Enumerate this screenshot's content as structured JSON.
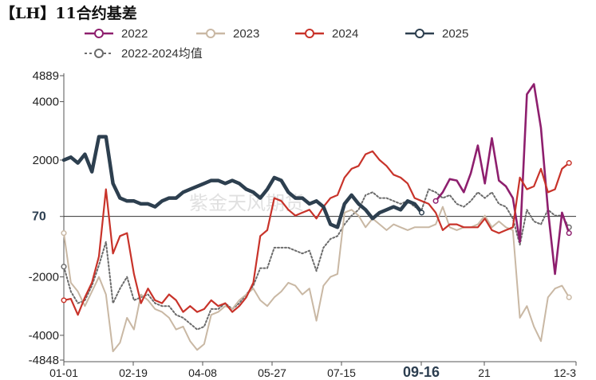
{
  "chart_data": {
    "type": "line",
    "title": "【LH】11合约基差",
    "x_ticks": [
      "01-01",
      "02-19",
      "04-08",
      "05-27",
      "07-15",
      "09-16",
      "21",
      "12-3"
    ],
    "highlight_x_tick": "09-16",
    "y_ticks": [
      4889,
      4000,
      2000,
      70,
      -2000,
      -4000,
      -4848
    ],
    "highlight_y_tick": 70,
    "ylim": [
      -4848,
      4889
    ],
    "xlim_days": [
      0,
      365
    ],
    "grid": false,
    "legend_position": "top",
    "watermark": "紫金天风期货",
    "colors": {
      "2022": "#8e1f6e",
      "2023": "#c9b8a4",
      "2024": "#c8332a",
      "2025": "#2d3f4f",
      "avg": "#6b6b6b"
    },
    "series": [
      {
        "name": "2022",
        "key": "2022",
        "x": [
          0,
          5,
          10,
          15,
          20,
          25,
          30,
          35,
          40,
          45,
          50,
          55,
          60,
          65,
          70,
          75,
          80,
          85,
          90,
          95,
          100,
          105,
          110,
          115,
          120,
          125,
          130,
          135,
          140,
          145,
          150,
          155,
          160,
          165,
          170,
          175,
          180,
          185,
          190,
          195,
          200,
          205,
          210,
          215,
          220,
          225,
          230,
          235,
          240,
          245,
          250,
          255,
          260,
          265,
          270,
          275,
          280,
          285,
          290,
          295,
          300,
          305,
          310,
          315,
          320,
          325,
          330,
          335,
          340,
          345,
          350,
          355,
          360
        ],
        "values": [
          null,
          null,
          null,
          null,
          null,
          null,
          null,
          null,
          null,
          null,
          null,
          null,
          null,
          null,
          null,
          null,
          null,
          null,
          null,
          null,
          null,
          null,
          null,
          null,
          null,
          null,
          null,
          null,
          null,
          null,
          null,
          null,
          null,
          null,
          null,
          null,
          null,
          null,
          null,
          null,
          null,
          null,
          null,
          null,
          null,
          null,
          null,
          null,
          null,
          null,
          null,
          null,
          null,
          600,
          900,
          1350,
          1300,
          900,
          1550,
          2500,
          1200,
          2750,
          1300,
          1100,
          700,
          -800,
          4250,
          4600,
          3100,
          300,
          -1900,
          200,
          -500
        ]
      },
      {
        "name": "2023",
        "key": "2023",
        "x": [
          0,
          5,
          10,
          15,
          20,
          25,
          30,
          35,
          40,
          45,
          50,
          55,
          60,
          65,
          70,
          75,
          80,
          85,
          90,
          95,
          100,
          105,
          110,
          115,
          120,
          125,
          130,
          135,
          140,
          145,
          150,
          155,
          160,
          165,
          170,
          175,
          180,
          185,
          190,
          195,
          200,
          205,
          210,
          215,
          220,
          225,
          230,
          235,
          240,
          245,
          250,
          255,
          260,
          265,
          270,
          275,
          280,
          285,
          290,
          295,
          300,
          305,
          310,
          315,
          320,
          325,
          330,
          335,
          340,
          345,
          350,
          355,
          360
        ],
        "values": [
          -500,
          -2200,
          -2500,
          -3000,
          -2500,
          -2000,
          -2600,
          -4550,
          -4250,
          -3400,
          -3800,
          -2600,
          -2800,
          -3100,
          -3200,
          -3400,
          -3800,
          -3700,
          -4200,
          -4500,
          -4300,
          -3300,
          -3200,
          -3000,
          -3100,
          -2800,
          -2600,
          -2400,
          -2800,
          -3000,
          -2700,
          -2500,
          -2200,
          -2300,
          -2600,
          -2400,
          -3500,
          -2300,
          -2000,
          -1900,
          200,
          300,
          100,
          -300,
          0,
          -200,
          -400,
          -200,
          -300,
          -400,
          -300,
          -300,
          -300,
          -200,
          400,
          -300,
          -400,
          -300,
          -300,
          -200,
          100,
          -300,
          -100,
          -300,
          -400,
          -3400,
          -3000,
          -3700,
          -4200,
          -2700,
          -2400,
          -2300,
          -2700
        ]
      },
      {
        "name": "2024",
        "key": "2024",
        "x": [
          0,
          5,
          10,
          15,
          20,
          25,
          30,
          35,
          40,
          45,
          50,
          55,
          60,
          65,
          70,
          75,
          80,
          85,
          90,
          95,
          100,
          105,
          110,
          115,
          120,
          125,
          130,
          135,
          140,
          145,
          150,
          155,
          160,
          165,
          170,
          175,
          180,
          185,
          190,
          195,
          200,
          205,
          210,
          215,
          220,
          225,
          230,
          235,
          240,
          245,
          250,
          255,
          260,
          265,
          270,
          275,
          280,
          285,
          290,
          295,
          300,
          305,
          310,
          315,
          320,
          325,
          330,
          335,
          340,
          345,
          350,
          355,
          360
        ],
        "values": [
          -2800,
          -2750,
          -3300,
          -2700,
          -2200,
          -1300,
          1000,
          -1200,
          -600,
          -500,
          -1900,
          -2900,
          -2400,
          -2800,
          -2900,
          -2600,
          -2800,
          -3200,
          -3000,
          -3200,
          -3100,
          -2800,
          -3000,
          -2900,
          -3200,
          -3000,
          -2700,
          -2200,
          -600,
          -400,
          700,
          600,
          300,
          100,
          200,
          300,
          0,
          400,
          700,
          800,
          1400,
          1700,
          1800,
          2200,
          2300,
          2000,
          1800,
          1500,
          1400,
          1200,
          700,
          600,
          500,
          200,
          -400,
          -200,
          -200,
          -300,
          -300,
          -300,
          0,
          -400,
          -500,
          -400,
          -300,
          1400,
          1000,
          1100,
          1700,
          900,
          1000,
          1700,
          1900
        ]
      },
      {
        "name": "2025",
        "key": "2025",
        "x": [
          0,
          5,
          10,
          15,
          20,
          25,
          30,
          35,
          40,
          45,
          50,
          55,
          60,
          65,
          70,
          75,
          80,
          85,
          90,
          95,
          100,
          105,
          110,
          115,
          120,
          125,
          130,
          135,
          140,
          145,
          150,
          155,
          160,
          165,
          170,
          175,
          180,
          185,
          190,
          195,
          200,
          205,
          210,
          215,
          220,
          225,
          230,
          235,
          240,
          245,
          250,
          255,
          260,
          265,
          270,
          275,
          280,
          285,
          290,
          295,
          300,
          305,
          310,
          315,
          320,
          325,
          330,
          335,
          340,
          345,
          350,
          355,
          360
        ],
        "values": [
          2000,
          2100,
          1900,
          2200,
          1600,
          2800,
          2800,
          1200,
          700,
          600,
          600,
          500,
          500,
          400,
          600,
          700,
          700,
          900,
          1000,
          1100,
          1200,
          1300,
          1300,
          1200,
          1300,
          1200,
          1000,
          900,
          700,
          1000,
          1400,
          1300,
          900,
          700,
          700,
          500,
          600,
          400,
          -200,
          -300,
          500,
          800,
          500,
          300,
          0,
          200,
          300,
          400,
          300,
          600,
          500,
          200,
          null,
          null,
          null,
          null,
          null,
          null,
          null,
          null,
          null,
          null,
          null,
          null,
          null,
          null,
          null,
          null,
          null,
          null,
          null,
          null,
          null
        ]
      },
      {
        "name": "2022-2024均值",
        "key": "avg",
        "x": [
          0,
          5,
          10,
          15,
          20,
          25,
          30,
          35,
          40,
          45,
          50,
          55,
          60,
          65,
          70,
          75,
          80,
          85,
          90,
          95,
          100,
          105,
          110,
          115,
          120,
          125,
          130,
          135,
          140,
          145,
          150,
          155,
          160,
          165,
          170,
          175,
          180,
          185,
          190,
          195,
          200,
          205,
          210,
          215,
          220,
          225,
          230,
          235,
          240,
          245,
          250,
          255,
          260,
          265,
          270,
          275,
          280,
          285,
          290,
          295,
          300,
          305,
          310,
          315,
          320,
          325,
          330,
          335,
          340,
          345,
          350,
          355,
          360
        ],
        "values": [
          -1650,
          -2500,
          -2900,
          -2800,
          -2300,
          -1600,
          -800,
          -2900,
          -2400,
          -2000,
          -2800,
          -2700,
          -2600,
          -2900,
          -3000,
          -3000,
          -3300,
          -3400,
          -3600,
          -3800,
          -3700,
          -3100,
          -3100,
          -2900,
          -3100,
          -2900,
          -2600,
          -2300,
          -1700,
          -1700,
          -1000,
          -1000,
          -1000,
          -1100,
          -1200,
          -1100,
          -1800,
          -1000,
          -700,
          -600,
          -200,
          100,
          300,
          800,
          900,
          700,
          700,
          600,
          500,
          600,
          400,
          300,
          1000,
          900,
          700,
          800,
          500,
          400,
          600,
          900,
          700,
          900,
          500,
          400,
          0,
          -900,
          300,
          -100,
          -200,
          300,
          100,
          100,
          -300
        ]
      }
    ]
  }
}
